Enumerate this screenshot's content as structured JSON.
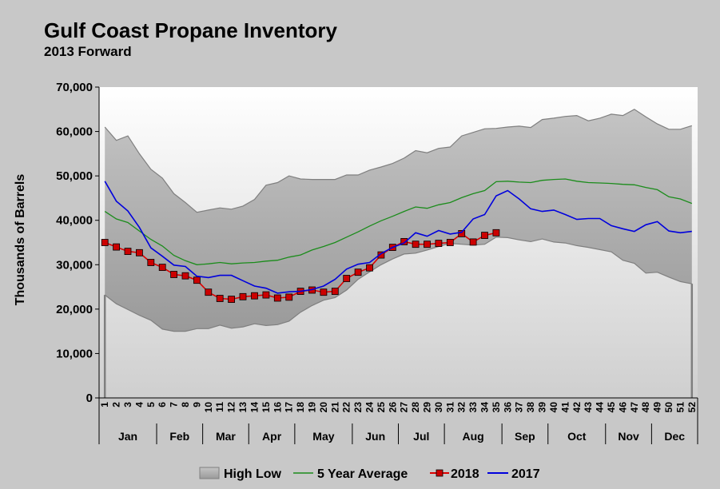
{
  "chart_data": {
    "type": "line",
    "title": "Gulf Coast Propane Inventory",
    "subtitle": "2013 Forward",
    "ylabel": "Thousands of Barrels",
    "xlabel": "",
    "ylim": [
      0,
      70000
    ],
    "yticks": [
      "0",
      "10,000",
      "20,000",
      "30,000",
      "40,000",
      "50,000",
      "60,000",
      "70,000"
    ],
    "ytick_values": [
      0,
      10000,
      20000,
      30000,
      40000,
      50000,
      60000,
      70000
    ],
    "x": [
      "1",
      "2",
      "3",
      "4",
      "5",
      "6",
      "7",
      "8",
      "9",
      "10",
      "11",
      "12",
      "13",
      "14",
      "15",
      "16",
      "17",
      "18",
      "19",
      "20",
      "21",
      "22",
      "23",
      "24",
      "25",
      "26",
      "27",
      "28",
      "29",
      "30",
      "31",
      "32",
      "33",
      "34",
      "35",
      "36",
      "37",
      "38",
      "39",
      "40",
      "41",
      "42",
      "43",
      "44",
      "45",
      "46",
      "47",
      "48",
      "49",
      "50",
      "51",
      "52"
    ],
    "months": [
      {
        "label": "Jan",
        "start": 1,
        "end": 5
      },
      {
        "label": "Feb",
        "start": 6,
        "end": 9
      },
      {
        "label": "Mar",
        "start": 10,
        "end": 13
      },
      {
        "label": "Apr",
        "start": 14,
        "end": 17
      },
      {
        "label": "May",
        "start": 18,
        "end": 22
      },
      {
        "label": "Jun",
        "start": 23,
        "end": 26
      },
      {
        "label": "Jul",
        "start": 27,
        "end": 30
      },
      {
        "label": "Aug",
        "start": 31,
        "end": 35
      },
      {
        "label": "Sep",
        "start": 36,
        "end": 39
      },
      {
        "label": "Oct",
        "start": 40,
        "end": 44
      },
      {
        "label": "Nov",
        "start": 45,
        "end": 48
      },
      {
        "label": "Dec",
        "start": 49,
        "end": 52
      }
    ],
    "grid": false,
    "legend_position": "bottom",
    "series": [
      {
        "name": "High Low",
        "type": "band",
        "high": [
          61000,
          58000,
          59000,
          55000,
          51500,
          49500,
          46000,
          44000,
          41800,
          42300,
          42800,
          42500,
          43200,
          44700,
          47900,
          48500,
          50000,
          49300,
          49200,
          49200,
          49200,
          50200,
          50200,
          51300,
          52000,
          52800,
          54000,
          55700,
          55200,
          56200,
          56500,
          59000,
          59800,
          60600,
          60700,
          61000,
          61200,
          60900,
          62700,
          63000,
          63400,
          63600,
          62400,
          63000,
          63900,
          63600,
          65000,
          63300,
          61700,
          60500,
          60500,
          61300
        ],
        "low": [
          23200,
          21200,
          19900,
          18600,
          17500,
          15500,
          15000,
          15000,
          15600,
          15600,
          16400,
          15700,
          16000,
          16700,
          16300,
          16500,
          17300,
          19300,
          20800,
          22000,
          22600,
          24300,
          26700,
          28400,
          30000,
          31300,
          32400,
          32600,
          33300,
          34100,
          34800,
          34600,
          34400,
          34600,
          36200,
          36100,
          35600,
          35200,
          35800,
          35100,
          34900,
          34300,
          33900,
          33400,
          32900,
          31000,
          30300,
          28100,
          28300,
          27200,
          26200,
          25700
        ],
        "fill": "#a8a8a8",
        "stroke": "#7f7f7f"
      },
      {
        "name": "5 Year Average",
        "color": "#1b8c1b",
        "values": [
          42000,
          40300,
          39500,
          37600,
          35700,
          34200,
          32100,
          30900,
          30000,
          30200,
          30500,
          30200,
          30400,
          30500,
          30800,
          31000,
          31700,
          32200,
          33300,
          34100,
          35000,
          36200,
          37400,
          38700,
          39900,
          40900,
          42000,
          43000,
          42700,
          43500,
          44000,
          45100,
          46000,
          46700,
          48700,
          48800,
          48600,
          48500,
          49000,
          49200,
          49300,
          48800,
          48500,
          48400,
          48300,
          48100,
          48000,
          47400,
          46900,
          45300,
          44800,
          43800
        ]
      },
      {
        "name": "2018",
        "color": "#dd0000",
        "marker_color": "#cc0000",
        "values": [
          35000,
          34000,
          33000,
          32700,
          30500,
          29400,
          27800,
          27500,
          26500,
          23800,
          22400,
          22200,
          22800,
          23000,
          23200,
          22500,
          22700,
          24000,
          24300,
          23800,
          24000,
          26900,
          28300,
          29300,
          32200,
          33900,
          35200,
          34600,
          34600,
          34800,
          35000,
          37000,
          35100,
          36600,
          37200,
          null,
          null,
          null,
          null,
          null,
          null,
          null,
          null,
          null,
          null,
          null,
          null,
          null,
          null,
          null,
          null,
          null
        ]
      },
      {
        "name": "2017",
        "color": "#0000dd",
        "values": [
          48800,
          44300,
          42100,
          38400,
          33800,
          31900,
          29900,
          29600,
          27400,
          27100,
          27600,
          27600,
          26400,
          25200,
          24700,
          23600,
          23900,
          24000,
          24400,
          25200,
          26700,
          29000,
          30100,
          30500,
          32500,
          33900,
          34900,
          37200,
          36400,
          37700,
          36900,
          37300,
          40300,
          41300,
          45500,
          46700,
          44800,
          42600,
          42000,
          42300,
          41300,
          40200,
          40400,
          40400,
          38800,
          38100,
          37500,
          39000,
          39700,
          37600,
          37200,
          37500
        ]
      }
    ]
  },
  "legend": {
    "items": [
      "High Low",
      "5 Year Average",
      "2018",
      "2017"
    ]
  },
  "colors": {
    "background": "#c8c8c8",
    "plot_gradient_top": "#ffffff",
    "plot_gradient_bottom": "#cfcfcf",
    "band_fill": "#a8a8a8"
  }
}
